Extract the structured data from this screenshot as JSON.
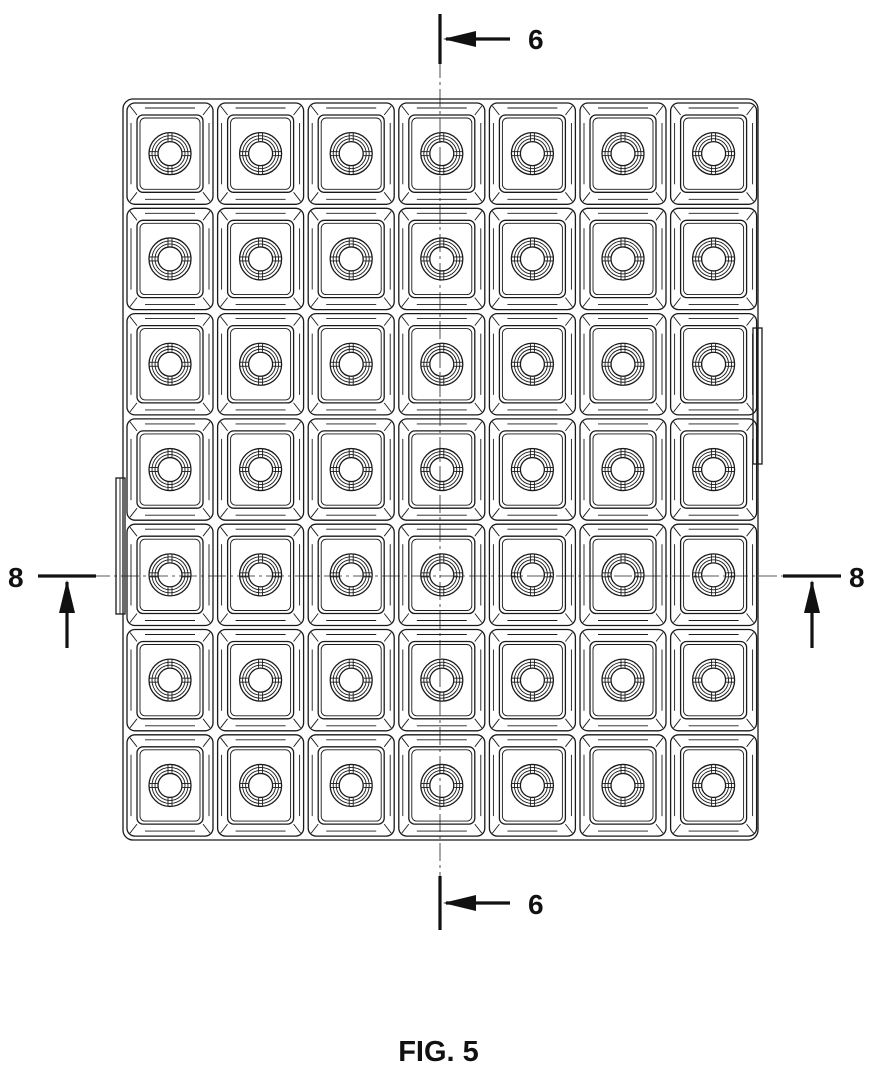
{
  "figure": {
    "caption": "FIG. 5"
  },
  "section_markers": {
    "vertical_top": "6",
    "vertical_bottom": "6",
    "horizontal_left": "8",
    "horizontal_right": "8"
  },
  "grid": {
    "rows": 7,
    "columns": 7
  },
  "colors": {
    "line": "#1a1a1a",
    "background": "#ffffff"
  }
}
